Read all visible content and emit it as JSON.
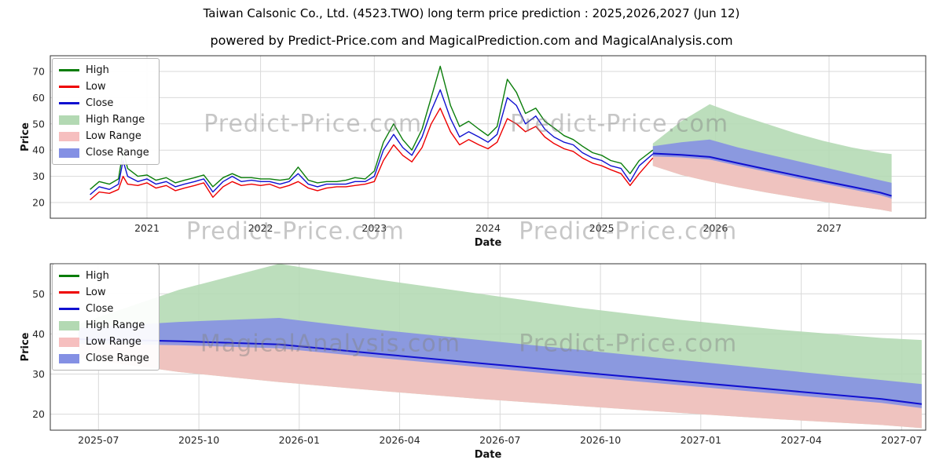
{
  "title": "Taiwan Calsonic Co., Ltd. (4523.TWO) long term price prediction : 2025,2026,2027 (Jun 12)",
  "subtitle": "powered by Predict-Price.com and MagicalPrediction.com and MagicalAnalysis.com",
  "colors": {
    "high": "#0a7d0a",
    "low": "#ee0000",
    "close": "#1010d0",
    "high_range": "#b3d9b3",
    "low_range": "#f6bfbf",
    "close_range": "#8490e4",
    "grid": "#d9d9d9",
    "spine": "#333333"
  },
  "legend": {
    "items": [
      {
        "label": "High",
        "swatch": "line",
        "color_key": "high"
      },
      {
        "label": "Low",
        "swatch": "line",
        "color_key": "low"
      },
      {
        "label": "Close",
        "swatch": "line",
        "color_key": "close"
      },
      {
        "label": "High Range",
        "swatch": "patch",
        "color_key": "high_range"
      },
      {
        "label": "Low Range",
        "swatch": "patch",
        "color_key": "low_range"
      },
      {
        "label": "Close Range",
        "swatch": "patch",
        "color_key": "close_range"
      }
    ]
  },
  "chart_data": [
    {
      "name": "history-and-forecast",
      "type": "line",
      "xlabel": "Date",
      "ylabel": "Price",
      "xlim": [
        2020.15,
        2027.85
      ],
      "ylim": [
        14,
        76
      ],
      "xticks": [
        2021,
        2022,
        2023,
        2024,
        2025,
        2026,
        2027
      ],
      "xtick_labels": [
        "2021",
        "2022",
        "2023",
        "2024",
        "2025",
        "2026",
        "2027"
      ],
      "yticks": [
        20,
        30,
        40,
        50,
        60,
        70
      ],
      "series": {
        "x": [
          2020.5,
          2020.58,
          2020.67,
          2020.75,
          2020.79,
          2020.83,
          2020.92,
          2021.0,
          2021.08,
          2021.17,
          2021.25,
          2021.33,
          2021.42,
          2021.5,
          2021.58,
          2021.67,
          2021.75,
          2021.83,
          2021.92,
          2022.0,
          2022.08,
          2022.17,
          2022.25,
          2022.33,
          2022.42,
          2022.5,
          2022.58,
          2022.67,
          2022.75,
          2022.83,
          2022.92,
          2023.0,
          2023.08,
          2023.17,
          2023.25,
          2023.33,
          2023.42,
          2023.5,
          2023.58,
          2023.67,
          2023.75,
          2023.83,
          2023.92,
          2024.0,
          2024.08,
          2024.17,
          2024.25,
          2024.33,
          2024.42,
          2024.5,
          2024.58,
          2024.67,
          2024.75,
          2024.83,
          2024.92,
          2025.0,
          2025.08,
          2025.17,
          2025.25,
          2025.33,
          2025.45
        ],
        "high": [
          25,
          28,
          27,
          29,
          40,
          33,
          30,
          30.5,
          28.5,
          29.5,
          27.5,
          28.5,
          29.5,
          30.5,
          26,
          29.5,
          31,
          29.5,
          29.5,
          29,
          29,
          28.5,
          29,
          33.5,
          28.5,
          27.5,
          28,
          28,
          28.5,
          29.5,
          29,
          32,
          43,
          50,
          44,
          40,
          48,
          60,
          72,
          57,
          49,
          51,
          48,
          45.5,
          49,
          67,
          62,
          54,
          56,
          51,
          48.5,
          45.5,
          44,
          41.5,
          39,
          38,
          36,
          35,
          31,
          36,
          40
        ],
        "low": [
          21,
          24,
          23.5,
          25,
          30,
          27,
          26.5,
          27.5,
          25.5,
          26.5,
          24.5,
          25.5,
          26.5,
          27.5,
          22,
          26,
          28,
          26.5,
          27,
          26.5,
          27,
          25.5,
          26.5,
          28,
          25.5,
          24.5,
          25.5,
          26,
          26,
          26.5,
          27,
          28,
          36,
          42,
          38,
          35.5,
          41,
          50,
          56,
          47,
          42,
          44,
          42,
          40.5,
          43,
          52,
          50,
          47,
          49,
          45,
          42.5,
          40.5,
          39.5,
          37,
          35,
          34,
          32.5,
          31,
          26.5,
          31,
          37
        ],
        "close": [
          23,
          26,
          25,
          27,
          36,
          30,
          28,
          29,
          27,
          28,
          26,
          27,
          28,
          29,
          24,
          28,
          30,
          28,
          28.5,
          28,
          28,
          27,
          28,
          31,
          27,
          26,
          27,
          27,
          27,
          28,
          28,
          30,
          40,
          46,
          41,
          38,
          45,
          55,
          63,
          52,
          45,
          47,
          45,
          43,
          46,
          60,
          57,
          50,
          53,
          48,
          45,
          43,
          42,
          39,
          37,
          36,
          34,
          33,
          28,
          34,
          38.5
        ]
      },
      "forecast": {
        "x": [
          2025.45,
          2025.7,
          2025.95,
          2026.2,
          2026.45,
          2026.7,
          2026.95,
          2027.2,
          2027.45,
          2027.55
        ],
        "high_top": [
          42.5,
          51,
          57.5,
          53.5,
          50,
          46.5,
          43.5,
          41,
          39,
          38.5
        ],
        "close_top": [
          41.5,
          43,
          44,
          41,
          38.5,
          36,
          33.5,
          31,
          28.5,
          27.5
        ],
        "close": [
          38.7,
          38.2,
          37.4,
          35,
          32.7,
          30.4,
          28.2,
          26,
          23.8,
          22.5
        ],
        "close_bot": [
          37.6,
          37.2,
          36.4,
          34,
          31.7,
          29.4,
          27.2,
          25,
          22.8,
          21.5
        ],
        "low_bot": [
          34,
          30.5,
          28,
          25.8,
          23.8,
          22,
          20.3,
          18.7,
          17.3,
          16.5
        ]
      },
      "watermarks": [
        {
          "text": "Predict-Price.com",
          "fx": 0.3,
          "fy": 0.42
        },
        {
          "text": "Predict-Price.com",
          "fx": 0.65,
          "fy": 0.42
        },
        {
          "text": "Predict-Price.com",
          "fx": 0.28,
          "fy": 1.08
        },
        {
          "text": "Predict-Price.com",
          "fx": 0.66,
          "fy": 1.08
        }
      ]
    },
    {
      "name": "forecast-detail",
      "type": "line",
      "xlabel": "Date",
      "ylabel": "Price",
      "xlim": [
        2025.38,
        2027.56
      ],
      "ylim": [
        16,
        57.5
      ],
      "xticks": [
        2025.5,
        2025.75,
        2026.0,
        2026.25,
        2026.5,
        2026.75,
        2027.0,
        2027.25,
        2027.5
      ],
      "xtick_labels": [
        "2025-07",
        "2025-10",
        "2026-01",
        "2026-04",
        "2026-07",
        "2026-10",
        "2027-01",
        "2027-04",
        "2027-07"
      ],
      "yticks": [
        20,
        30,
        40,
        50
      ],
      "series": null,
      "forecast": {
        "x": [
          2025.45,
          2025.7,
          2025.95,
          2026.2,
          2026.45,
          2026.7,
          2026.95,
          2027.2,
          2027.45,
          2027.55
        ],
        "high_top": [
          42.5,
          51,
          57.5,
          53.5,
          50,
          46.5,
          43.5,
          41,
          39,
          38.5
        ],
        "close_top": [
          41.5,
          43,
          44,
          41,
          38.5,
          36,
          33.5,
          31,
          28.5,
          27.5
        ],
        "close": [
          38.7,
          38.2,
          37.4,
          35,
          32.7,
          30.4,
          28.2,
          26,
          23.8,
          22.5
        ],
        "close_bot": [
          37.6,
          37.2,
          36.4,
          34,
          31.7,
          29.4,
          27.2,
          25,
          22.8,
          21.5
        ],
        "low_bot": [
          34,
          30.5,
          28,
          25.8,
          23.8,
          22,
          20.3,
          18.7,
          17.3,
          16.5
        ]
      },
      "watermarks": [
        {
          "text": "MagicalAnalysis.com",
          "fx": 0.32,
          "fy": 0.48
        },
        {
          "text": "Predict-Price.com",
          "fx": 0.66,
          "fy": 0.48
        }
      ]
    }
  ]
}
